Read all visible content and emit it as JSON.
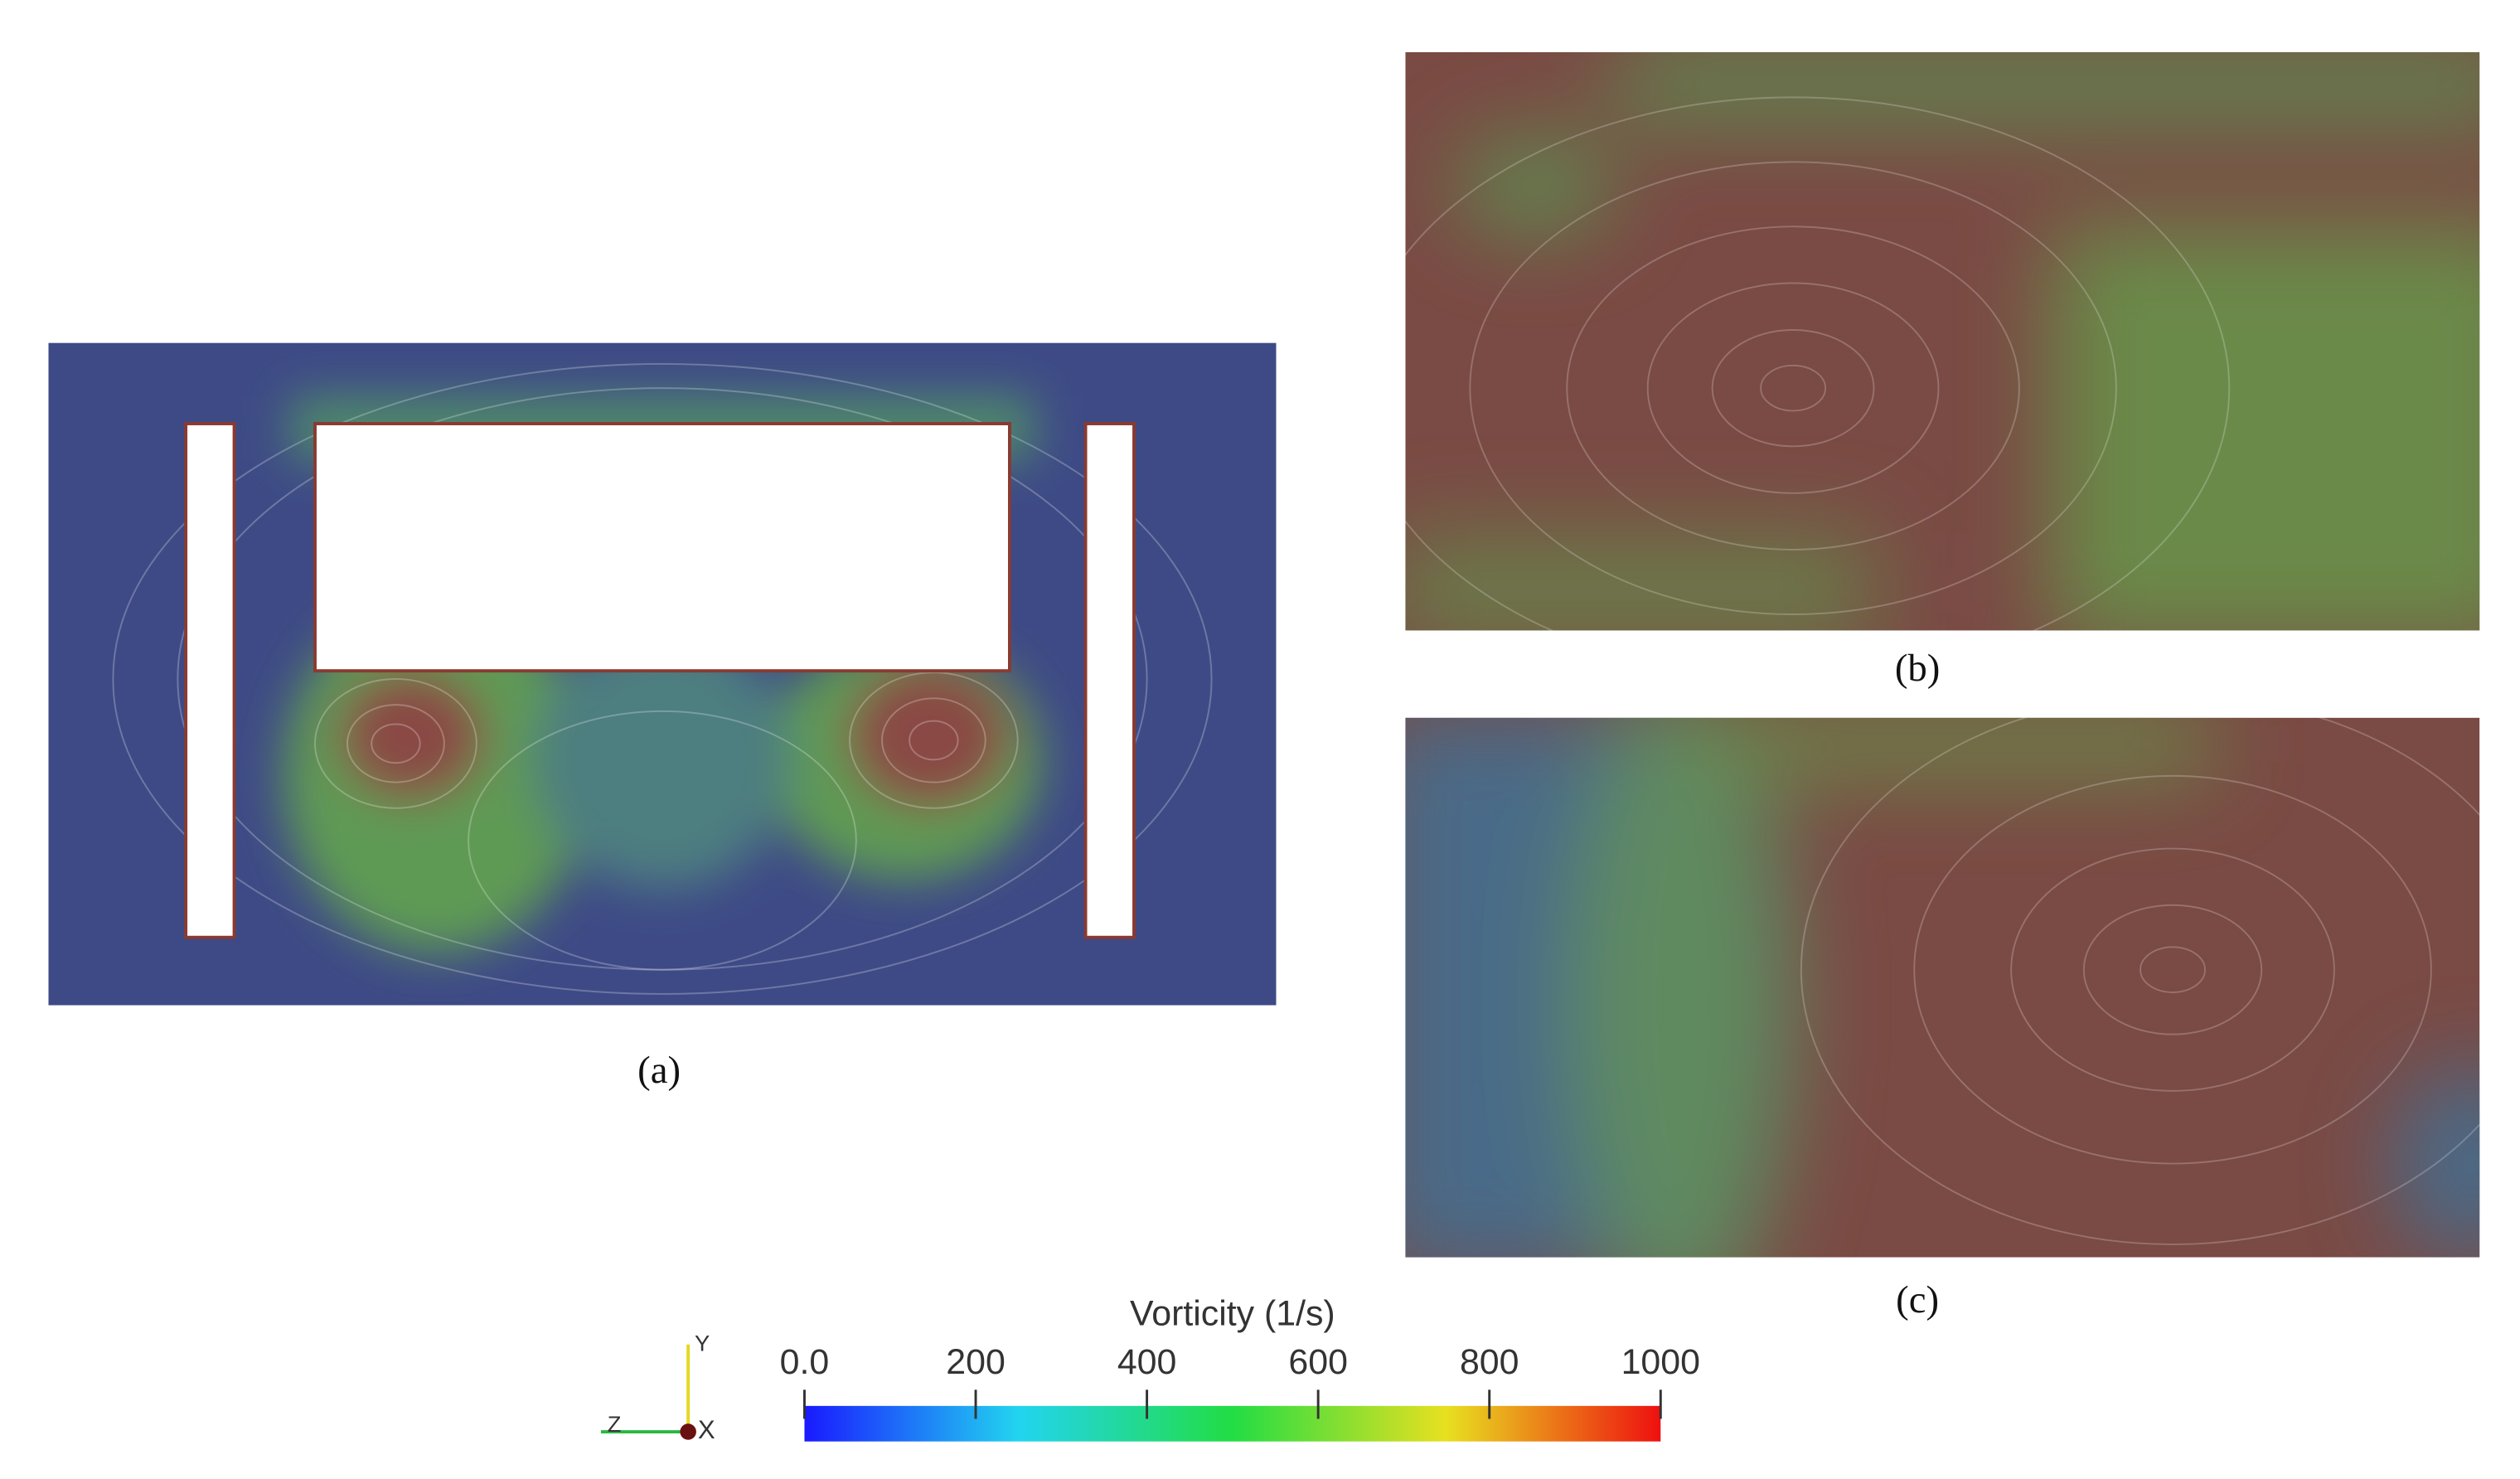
{
  "panels": [
    {
      "label": "(a)"
    },
    {
      "label": "(b)"
    },
    {
      "label": "(c)"
    }
  ],
  "colorbar": {
    "title": "Vorticity (1/s)",
    "range": [
      0,
      1000
    ],
    "ticks": [
      {
        "value": 0,
        "label": "0.0"
      },
      200,
      400,
      600,
      800,
      1000
    ]
  },
  "axes_triad": {
    "y": "Y",
    "z": "Z",
    "x": "X"
  }
}
